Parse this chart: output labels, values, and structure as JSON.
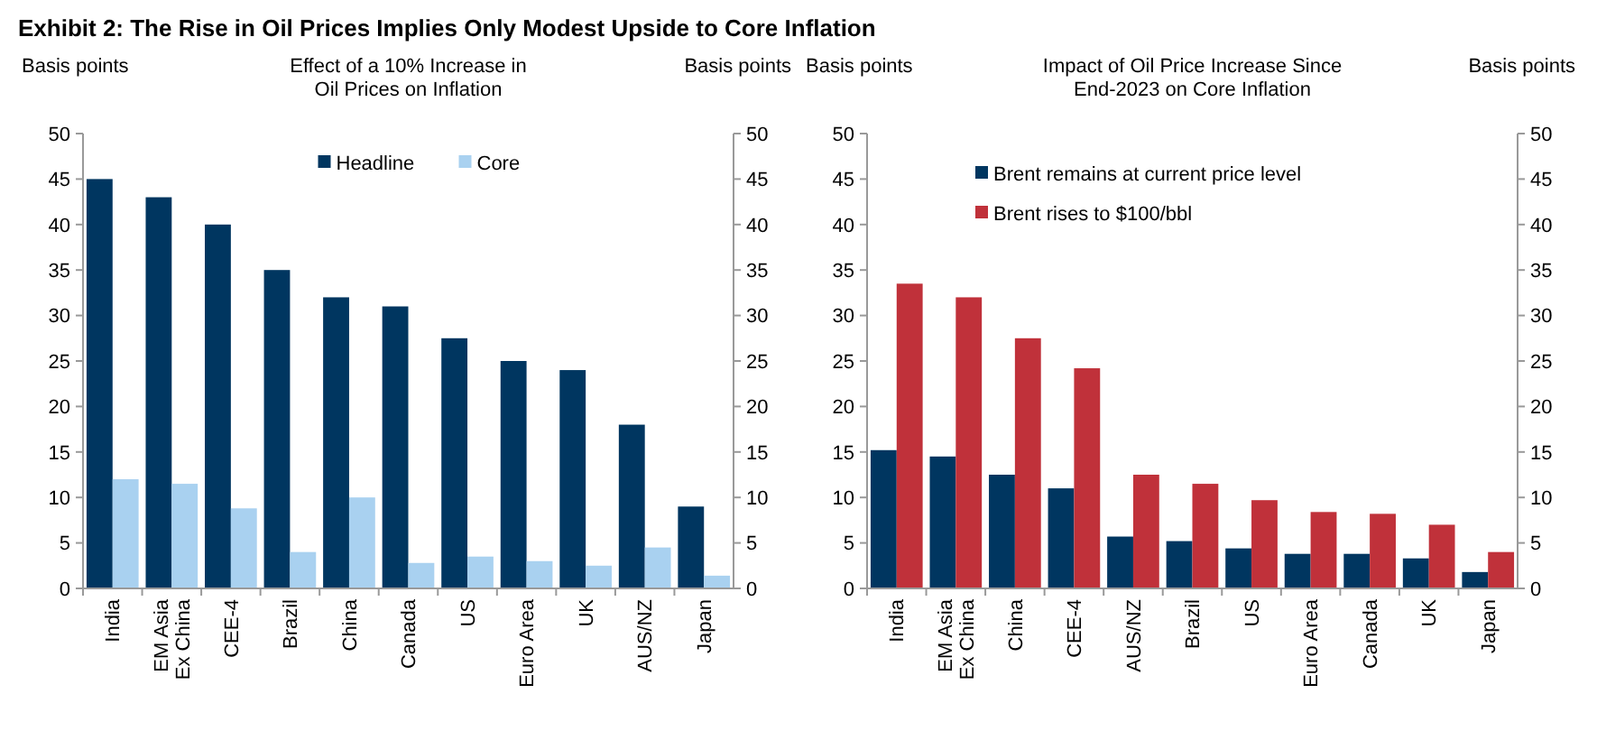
{
  "chart_data": [
    {
      "type": "bar",
      "annotations": [
        "Exhibit 2: The Rise in Oil Prices Implies Only Modest Upside to Core Inflation"
      ],
      "title": "Effect of a 10% Increase in\nOil Prices on Inflation",
      "ylabel": "Basis points",
      "y2label": "Basis points",
      "categories": [
        "India",
        "EM Asia\nEx China",
        "CEE-4",
        "Brazil",
        "China",
        "Canada",
        "US",
        "Euro Area",
        "UK",
        "AUS/NZ",
        "Japan"
      ],
      "series": [
        {
          "name": "Headline",
          "color": "#003660",
          "values": [
            45,
            43,
            40,
            35,
            32,
            31,
            27.5,
            25,
            24,
            18,
            9
          ]
        },
        {
          "name": "Core",
          "color": "#a9d1f0",
          "values": [
            12,
            11.5,
            8.8,
            4,
            10,
            2.8,
            3.5,
            3,
            2.5,
            4.5,
            1.4
          ]
        }
      ],
      "ylim": [
        0,
        50
      ],
      "yticks": [
        0,
        5,
        10,
        15,
        20,
        25,
        30,
        35,
        40,
        45,
        50
      ],
      "y2lim": [
        0,
        50
      ],
      "y2ticks": [
        0,
        5,
        10,
        15,
        20,
        25,
        30,
        35,
        40,
        45,
        50
      ],
      "legend": "top",
      "grid": false
    },
    {
      "type": "bar",
      "title": "Impact of Oil Price Increase Since\nEnd-2023 on Core Inflation",
      "ylabel": "Basis points",
      "y2label": "Basis points",
      "categories": [
        "India",
        "EM Asia\nEx China",
        "China",
        "CEE-4",
        "AUS/NZ",
        "Brazil",
        "US",
        "Euro Area",
        "Canada",
        "UK",
        "Japan"
      ],
      "series": [
        {
          "name": "Brent remains at current price level",
          "color": "#003660",
          "values": [
            15.2,
            14.5,
            12.5,
            11,
            5.7,
            5.2,
            4.4,
            3.8,
            3.8,
            3.3,
            1.8
          ]
        },
        {
          "name": "Brent rises to $100/bbl",
          "color": "#c0313a",
          "values": [
            33.5,
            32,
            27.5,
            24.2,
            12.5,
            11.5,
            9.7,
            8.4,
            8.2,
            7,
            4
          ]
        }
      ],
      "ylim": [
        0,
        50
      ],
      "yticks": [
        0,
        5,
        10,
        15,
        20,
        25,
        30,
        35,
        40,
        45,
        50
      ],
      "y2lim": [
        0,
        50
      ],
      "y2ticks": [
        0,
        5,
        10,
        15,
        20,
        25,
        30,
        35,
        40,
        45,
        50
      ],
      "legend": "top left",
      "grid": false
    }
  ]
}
